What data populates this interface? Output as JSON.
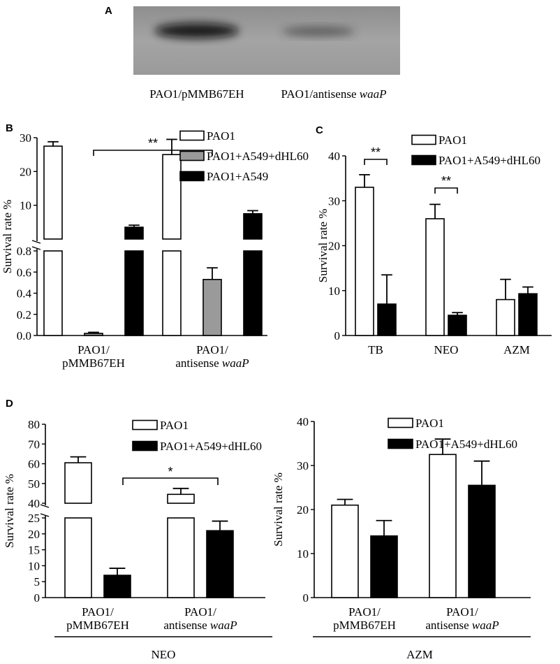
{
  "panels": {
    "A": {
      "label": "A",
      "blot_caption_left": "PAO1/pMMB67EH",
      "blot_caption_right_prefix": "PAO1/antisense ",
      "blot_caption_right_gene": "waaP",
      "band_intensity": [
        0.9,
        0.45
      ]
    },
    "B": {
      "label": "B"
    },
    "C": {
      "label": "C"
    },
    "D": {
      "label": "D",
      "group_labels": [
        "NEO",
        "AZM"
      ]
    }
  },
  "chart_data": [
    {
      "id": "B",
      "type": "bar",
      "ylabel": "Survival rate %",
      "axis_break": true,
      "ylim_lower": [
        0,
        0.8
      ],
      "yticks_lower": [
        "0.0",
        "0.2",
        "0.4",
        "0.6",
        "0.8"
      ],
      "ylim_upper": [
        0,
        30
      ],
      "yticks_upper": [
        "10",
        "20",
        "30"
      ],
      "categories": [
        "PAO1/\npMMB67EH",
        "PAO1/\nantisense waaP"
      ],
      "category_lines": [
        [
          "PAO1/",
          "pMMB67EH"
        ],
        [
          "PAO1/",
          "antisense ",
          "waaP"
        ]
      ],
      "series": [
        {
          "name": "PAO1",
          "fill": "#ffffff",
          "values": [
            27.5,
            25.0
          ],
          "errors": [
            1.3,
            4.5
          ]
        },
        {
          "name": "PAO1+A549+dHL60",
          "fill": "#9a9a9a",
          "values": [
            0.02,
            0.53
          ],
          "errors": [
            0.01,
            0.11
          ]
        },
        {
          "name": "PAO1+A549",
          "fill": "#000000",
          "values": [
            3.5,
            7.5
          ],
          "errors": [
            0.6,
            0.9
          ]
        }
      ],
      "significance": [
        {
          "label": "**",
          "from": 0,
          "to": 1
        }
      ],
      "legend": "top-right"
    },
    {
      "id": "C",
      "type": "bar",
      "ylabel": "Survival rate %",
      "ylim": [
        0,
        40
      ],
      "yticks": [
        "0",
        "10",
        "20",
        "30",
        "40"
      ],
      "categories": [
        "TB",
        "NEO",
        "AZM"
      ],
      "series": [
        {
          "name": "PAO1",
          "fill": "#ffffff",
          "values": [
            33,
            26,
            8
          ],
          "errors": [
            2.8,
            3.2,
            4.5
          ]
        },
        {
          "name": "PAO1+A549+dHL60",
          "fill": "#000000",
          "values": [
            7,
            4.5,
            9.3
          ],
          "errors": [
            6.5,
            0.6,
            1.5
          ]
        }
      ],
      "significance": [
        {
          "label": "**",
          "category": 0
        },
        {
          "label": "**",
          "category": 1
        }
      ],
      "legend": "top"
    },
    {
      "id": "D-NEO",
      "type": "bar",
      "ylabel": "Survival rate %",
      "axis_break": true,
      "ylim_lower": [
        0,
        25
      ],
      "yticks_lower": [
        "0",
        "5",
        "10",
        "15",
        "20",
        "25"
      ],
      "ylim_upper": [
        40,
        80
      ],
      "yticks_upper": [
        "40",
        "50",
        "60",
        "70",
        "80"
      ],
      "categories": [
        "PAO1/\npMMB67EH",
        "PAO1/\nantisense waaP"
      ],
      "category_lines": [
        [
          "PAO1/",
          "pMMB67EH"
        ],
        [
          "PAO1/",
          "antisense ",
          "waaP"
        ]
      ],
      "series": [
        {
          "name": "PAO1",
          "fill": "#ffffff",
          "values": [
            60.5,
            44.5
          ],
          "errors": [
            3.0,
            3.0
          ]
        },
        {
          "name": "PAO1+A549+dHL60",
          "fill": "#000000",
          "values": [
            7,
            21
          ],
          "errors": [
            2.2,
            3.0
          ]
        }
      ],
      "significance": [
        {
          "label": "*",
          "from": 0,
          "to": 1
        }
      ],
      "group_label": "NEO",
      "legend": "top"
    },
    {
      "id": "D-AZM",
      "type": "bar",
      "ylabel": "Survival rate %",
      "ylim": [
        0,
        40
      ],
      "yticks": [
        "0",
        "10",
        "20",
        "30",
        "40"
      ],
      "categories": [
        "PAO1/\npMMB67EH",
        "PAO1/\nantisense waaP"
      ],
      "category_lines": [
        [
          "PAO1/",
          "pMMB67EH"
        ],
        [
          "PAO1/",
          "antisense ",
          "waaP"
        ]
      ],
      "series": [
        {
          "name": "PAO1",
          "fill": "#ffffff",
          "values": [
            21,
            32.5
          ],
          "errors": [
            1.3,
            3.5
          ]
        },
        {
          "name": "PAO1+A549+dHL60",
          "fill": "#000000",
          "values": [
            14,
            25.5
          ],
          "errors": [
            3.5,
            5.5
          ]
        }
      ],
      "group_label": "AZM",
      "legend": "top"
    }
  ]
}
